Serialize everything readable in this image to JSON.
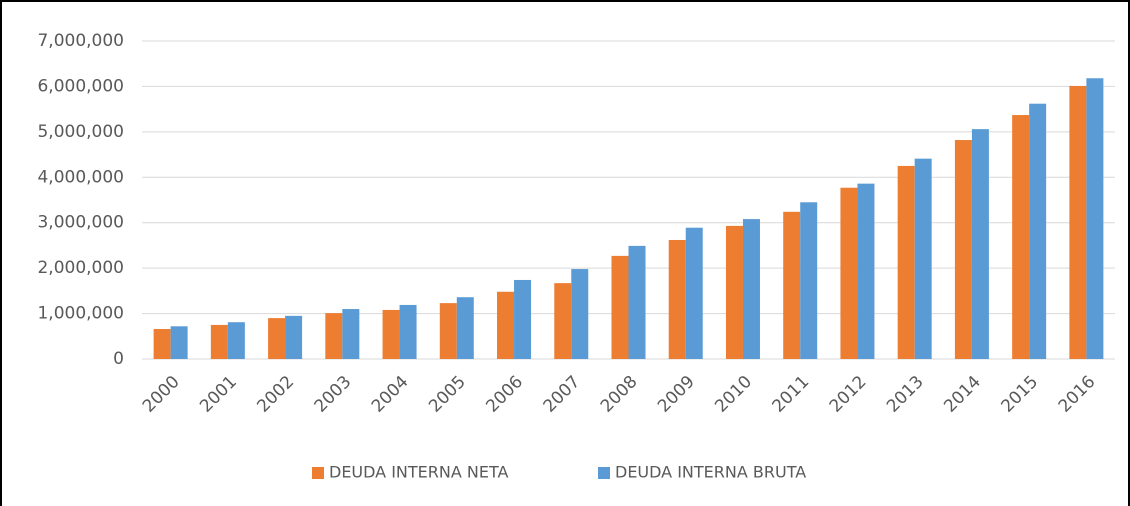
{
  "chart_data": {
    "type": "bar",
    "categories": [
      "2000",
      "2001",
      "2002",
      "2003",
      "2004",
      "2005",
      "2006",
      "2007",
      "2008",
      "2009",
      "2010",
      "2011",
      "2012",
      "2013",
      "2014",
      "2015",
      "2016"
    ],
    "series": [
      {
        "name": "DEUDA INTERNA NETA",
        "color": "#ed7d31",
        "values": [
          660000,
          750000,
          900000,
          1010000,
          1080000,
          1230000,
          1480000,
          1670000,
          2270000,
          2620000,
          2930000,
          3240000,
          3770000,
          4250000,
          4820000,
          5370000,
          6010000
        ]
      },
      {
        "name": "DEUDA INTERNA BRUTA",
        "color": "#5b9bd5",
        "values": [
          720000,
          810000,
          950000,
          1100000,
          1190000,
          1360000,
          1740000,
          1980000,
          2490000,
          2890000,
          3080000,
          3450000,
          3860000,
          4410000,
          5060000,
          5620000,
          6180000
        ]
      }
    ],
    "ylim": [
      0,
      7000000
    ],
    "yticks": [
      0,
      {
        "value": 1000000,
        "label": "1,000,000"
      },
      {
        "value": 2000000,
        "label": "2,000,000"
      },
      {
        "value": 3000000,
        "label": "3,000,000"
      },
      {
        "value": 4000000,
        "label": "4,000,000"
      },
      {
        "value": 5000000,
        "label": "5,000,000"
      },
      {
        "value": 6000000,
        "label": "6,000,000"
      },
      {
        "value": 7000000,
        "label": "7,000,000"
      }
    ],
    "grid": true,
    "legend": "bottom"
  }
}
